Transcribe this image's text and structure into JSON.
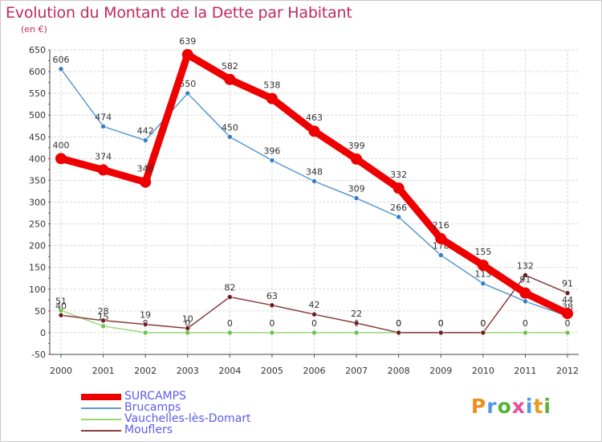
{
  "title": "Evolution du Montant de la Dette par Habitant",
  "unit_label": "(en €)",
  "brand": {
    "text": "Proxiti",
    "letter_colors": [
      "#f08c1e",
      "#4f9be0",
      "#55b33a",
      "#e84b9a",
      "#4f9be0",
      "#e89b1e",
      "#55b33a"
    ]
  },
  "chart_data": {
    "type": "line",
    "x": [
      "2000",
      "2001",
      "2002",
      "2003",
      "2004",
      "2005",
      "2006",
      "2007",
      "2008",
      "2009",
      "2010",
      "2011",
      "2012"
    ],
    "ylim": [
      -50,
      650
    ],
    "y_ticks": [
      "-50",
      "0",
      "50",
      "100",
      "150",
      "200",
      "250",
      "300",
      "350",
      "400",
      "450",
      "500",
      "550",
      "600",
      "650"
    ],
    "grid": true,
    "legend_position": "bottom-left",
    "series": [
      {
        "name": "Brucamps",
        "color": "#5b9ad1",
        "marker_color": "#2f7fc8",
        "values": [
          606,
          474,
          442,
          550,
          450,
          396,
          348,
          309,
          266,
          178,
          113,
          72,
          38
        ],
        "labels": [
          "606",
          "474",
          "442",
          "550",
          "450",
          "396",
          "348",
          "309",
          "266",
          "178",
          "113",
          "72",
          "38"
        ]
      },
      {
        "name": "Vauchelles-lès-Domart",
        "color": "#9bd77a",
        "marker_color": "#72c24f",
        "values": [
          51,
          15,
          0,
          0,
          0,
          0,
          0,
          0,
          0,
          0,
          0,
          0,
          0
        ],
        "labels": [
          "51",
          "15",
          "0",
          "0",
          "0",
          "0",
          "0",
          "0",
          "0",
          "0",
          "0",
          "0",
          "0"
        ]
      },
      {
        "name": "Mouflers",
        "color": "#8a3b3b",
        "marker_color": "#6b1e1e",
        "values": [
          40,
          28,
          19,
          10,
          82,
          63,
          42,
          22,
          0,
          0,
          0,
          132,
          91
        ],
        "labels": [
          "40",
          "28",
          "19",
          "10",
          "82",
          "63",
          "42",
          "22",
          "0",
          "0",
          "0",
          "132",
          "91"
        ]
      },
      {
        "name": "SURCAMPS",
        "color": "#ee0000",
        "marker_color": "#ee0000",
        "emphasis": true,
        "values": [
          400,
          374,
          346,
          639,
          582,
          538,
          463,
          399,
          332,
          216,
          155,
          91,
          44
        ],
        "labels": [
          "400",
          "374",
          "346",
          "639",
          "582",
          "538",
          "463",
          "399",
          "332",
          "216",
          "155",
          "91",
          "44"
        ]
      }
    ]
  },
  "legend_items": [
    {
      "label": "SURCAMPS",
      "color": "#ee0000",
      "thickness": 8
    },
    {
      "label": "Brucamps",
      "color": "#5b9ad1",
      "thickness": 2
    },
    {
      "label": "Vauchelles-lès-Domart",
      "color": "#9bd77a",
      "thickness": 2
    },
    {
      "label": "Mouflers",
      "color": "#8a3b3b",
      "thickness": 2
    }
  ]
}
